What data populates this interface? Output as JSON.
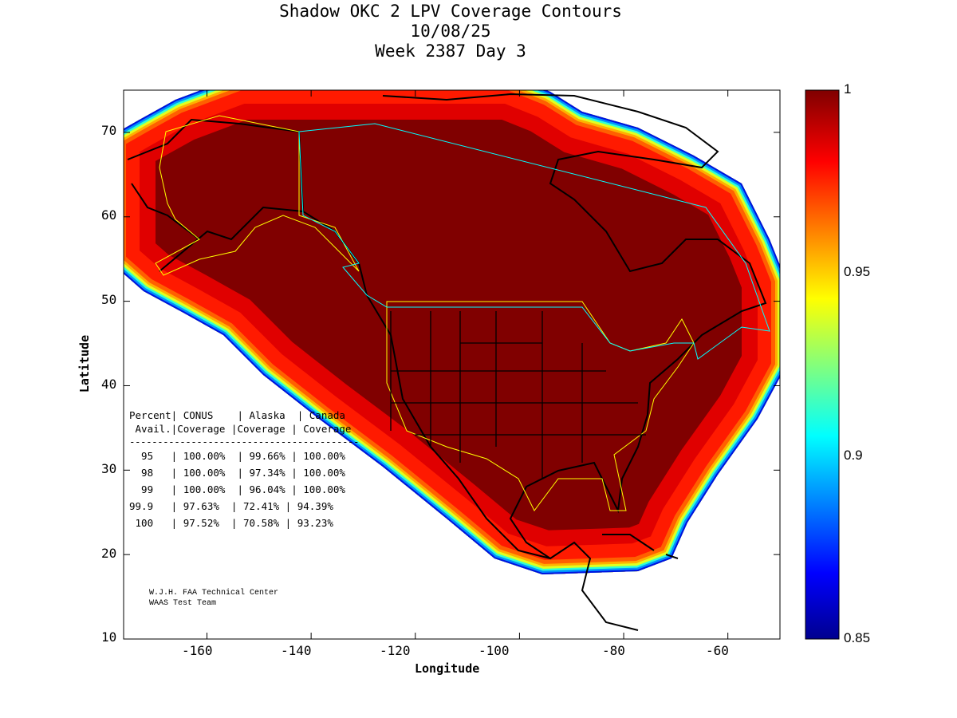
{
  "title_lines": [
    "Shadow OKC 2 LPV Coverage Contours",
    "10/08/25",
    "Week 2387 Day 3"
  ],
  "chart_data": {
    "type": "heatmap",
    "title": "Shadow OKC 2 LPV Coverage Contours",
    "xlabel": "Longitude",
    "ylabel": "Latitude",
    "xlim": [
      -176,
      -50
    ],
    "ylim": [
      10,
      75
    ],
    "xticks": [
      "-160",
      "-140",
      "-120",
      "-100",
      "-80",
      "-60"
    ],
    "yticks": [
      "10",
      "20",
      "30",
      "40",
      "50",
      "60",
      "70"
    ],
    "colorbar": {
      "range": [
        0.85,
        1
      ],
      "ticks": [
        "1",
        "0.95",
        "0.9",
        "0.85"
      ],
      "colormap": "jet"
    }
  },
  "table": {
    "header": [
      "Percent| CONUS    | Alaska  | Canada",
      " Avail.|Coverage |Coverage | Coverage"
    ],
    "separator": "-----------------------------------------",
    "rows": [
      "  95   | 100.00%  | 99.66% | 100.00%",
      "  98   | 100.00%  | 97.34% | 100.00%",
      "  99   | 100.00%  | 96.04% | 100.00%",
      "99.9   | 97.63%  | 72.41% | 94.39%",
      " 100   | 97.52%  | 70.58% | 93.23%"
    ]
  },
  "credits": [
    "W.J.H. FAA Technical Center",
    "WAAS Test Team"
  ]
}
